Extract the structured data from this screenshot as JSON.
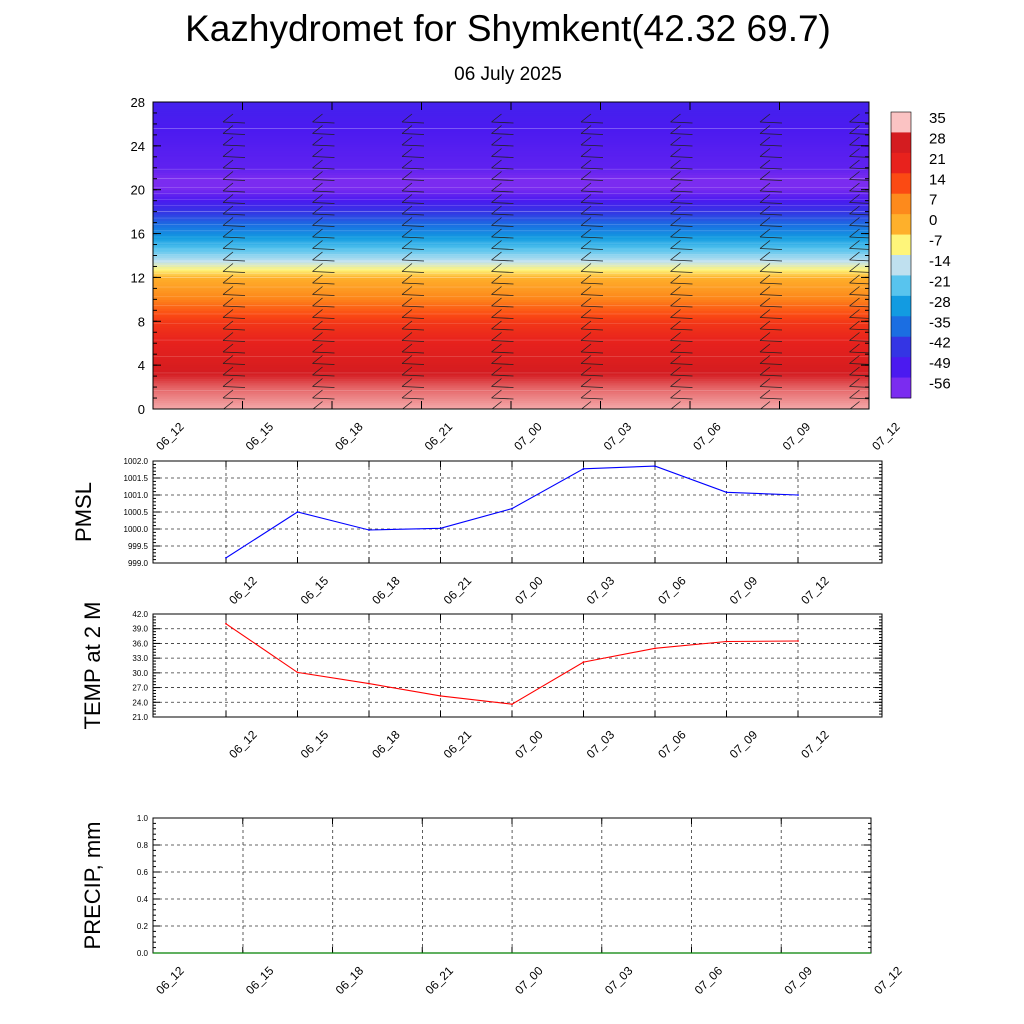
{
  "page": {
    "title": "Kazhydromet for Shymkent(42.32 69.7)",
    "subtitle": "06 July 2025"
  },
  "chart_data": [
    {
      "type": "heatmap",
      "name": "vertical-temperature-section",
      "x_labels": [
        "06_12",
        "06_15",
        "06_18",
        "06_21",
        "07_00",
        "07_03",
        "07_06",
        "07_09",
        "07_12"
      ],
      "y_ticks": [
        0,
        4,
        8,
        12,
        16,
        20,
        24,
        28
      ],
      "ylim": [
        0,
        28
      ],
      "colorbar_labels": [
        "35",
        "28",
        "21",
        "14",
        "7",
        "0",
        "-7",
        "-14",
        "-21",
        "-28",
        "-35",
        "-42",
        "-49",
        "-56"
      ],
      "colorbar_colors": [
        "#fbc3c3",
        "#d41c20",
        "#e8221d",
        "#fb4a13",
        "#fd8a1c",
        "#feb02b",
        "#fef57a",
        "#bfe0ef",
        "#58c4ee",
        "#129be1",
        "#1b6ee2",
        "#3435e4",
        "#4b1af0",
        "#7b2cf0"
      ],
      "levels": [
        {
          "z": 0,
          "t": 34
        },
        {
          "z": 2,
          "t": 31
        },
        {
          "z": 5,
          "t": 24
        },
        {
          "z": 8,
          "t": 17
        },
        {
          "z": 10,
          "t": 8
        },
        {
          "z": 12,
          "t": 0
        },
        {
          "z": 13.5,
          "t": -14
        },
        {
          "z": 16,
          "t": -30
        },
        {
          "z": 18,
          "t": -42
        },
        {
          "z": 20.5,
          "t": -58
        },
        {
          "z": 22,
          "t": -52
        },
        {
          "z": 28,
          "t": -47
        }
      ],
      "grid": false
    },
    {
      "type": "line",
      "name": "pmsl",
      "ylabel": "PMSL",
      "categories": [
        "06_12",
        "06_15",
        "06_18",
        "06_21",
        "07_00",
        "07_03",
        "07_06",
        "07_09",
        "07_12"
      ],
      "values": [
        999.15,
        1000.5,
        999.97,
        1000.02,
        1000.6,
        1001.77,
        1001.85,
        1001.08,
        1001.0
      ],
      "ylim": [
        999.0,
        1002.0
      ],
      "y_ticks": [
        "999.0",
        "999.5",
        "1000.0",
        "1000.5",
        "1001.0",
        "1001.5",
        "1002.0"
      ],
      "color": "#0000ff",
      "grid": true
    },
    {
      "type": "line",
      "name": "temp-2m",
      "ylabel": "TEMP at 2 M",
      "categories": [
        "06_12",
        "06_15",
        "06_18",
        "06_21",
        "07_00",
        "07_03",
        "07_06",
        "07_09",
        "07_12"
      ],
      "values": [
        40.0,
        30.1,
        27.8,
        25.3,
        23.6,
        32.2,
        35.0,
        36.4,
        36.5
      ],
      "ylim": [
        21.0,
        42.0
      ],
      "y_ticks": [
        "21.0",
        "24.0",
        "27.0",
        "30.0",
        "33.0",
        "36.0",
        "39.0",
        "42.0"
      ],
      "color": "#ff0000",
      "grid": true
    },
    {
      "type": "line",
      "name": "precip",
      "ylabel": "PRECIP, mm",
      "categories": [
        "06_12",
        "06_15",
        "06_18",
        "06_21",
        "07_00",
        "07_03",
        "07_06",
        "07_09",
        "07_12"
      ],
      "values": [
        0,
        0,
        0,
        0,
        0,
        0,
        0,
        0,
        0
      ],
      "ylim": [
        0.0,
        1.0
      ],
      "y_ticks": [
        "0.0",
        "0.2",
        "0.4",
        "0.6",
        "0.8",
        "1.0"
      ],
      "color": "#008000",
      "grid": true
    }
  ]
}
